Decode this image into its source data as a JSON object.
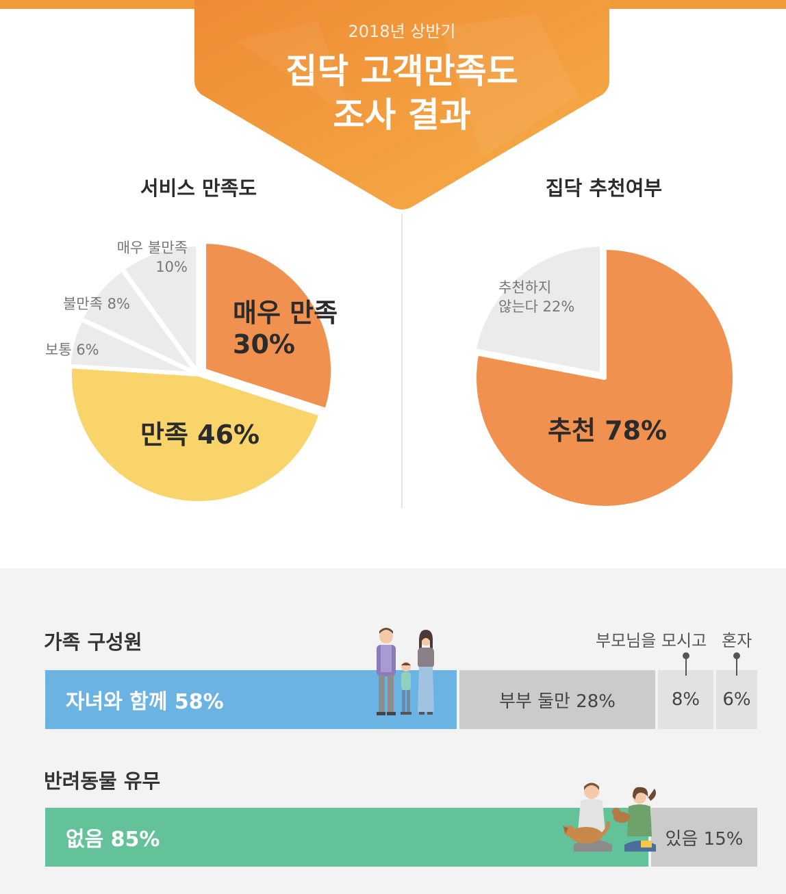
{
  "header": {
    "subtitle": "2018년 상반기",
    "title_line1": "집닥 고객만족도",
    "title_line2": "조사 결과"
  },
  "colors": {
    "orange": "#f0914f",
    "yellow": "#f8d46a",
    "light_gray": "#ebebeb",
    "blue": "#6bb3e3",
    "green": "#64c29a",
    "gray": "#cbcbcb",
    "banner": "#f29a3a"
  },
  "chart_data": [
    {
      "type": "pie",
      "title": "서비스 만족도",
      "slices": [
        {
          "label": "매우 만족",
          "value": 30,
          "display": "30%"
        },
        {
          "label": "만족",
          "value": 46,
          "display": "만족 46%"
        },
        {
          "label": "보통",
          "value": 6,
          "display": "보통 6%"
        },
        {
          "label": "불만족",
          "value": 8,
          "display": "불만족 8%"
        },
        {
          "label": "매우 불만족",
          "value": 10,
          "display": "10%"
        }
      ]
    },
    {
      "type": "pie",
      "title": "집닥 추천여부",
      "slices": [
        {
          "label": "추천",
          "value": 78,
          "display": "추천 78%"
        },
        {
          "label": "추천하지 않는다",
          "value": 22,
          "display": "않는다 22%"
        }
      ],
      "small_label_line1": "추천하지"
    },
    {
      "type": "bar",
      "title": "가족 구성원",
      "segments": [
        {
          "label": "자녀와 함께 58%",
          "value": 58
        },
        {
          "label": "부부 둘만 28%",
          "value": 28
        },
        {
          "label": "8%",
          "value": 8,
          "callout": "부모님을 모시고"
        },
        {
          "label": "6%",
          "value": 6,
          "callout": "혼자"
        }
      ]
    },
    {
      "type": "bar",
      "title": "반려동물 유무",
      "segments": [
        {
          "label": "없음 85%",
          "value": 85
        },
        {
          "label": "있음 15%",
          "value": 15
        }
      ]
    }
  ]
}
